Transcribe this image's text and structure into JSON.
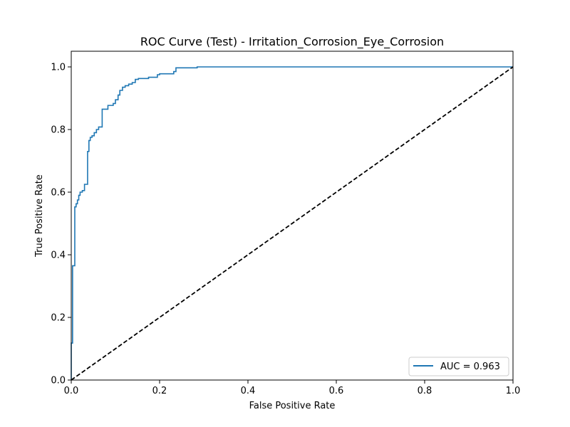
{
  "chart_data": {
    "type": "line",
    "title": "ROC Curve (Test) - Irritation_Corrosion_Eye_Corrosion",
    "xlabel": "False Positive Rate",
    "ylabel": "True Positive Rate",
    "xlim": [
      0.0,
      1.0
    ],
    "ylim": [
      0.0,
      1.05
    ],
    "xticks": [
      0.0,
      0.2,
      0.4,
      0.6,
      0.8,
      1.0
    ],
    "yticks": [
      0.0,
      0.2,
      0.4,
      0.6,
      0.8,
      1.0
    ],
    "xtick_labels": [
      "0.0",
      "0.2",
      "0.4",
      "0.6",
      "0.8",
      "1.0"
    ],
    "ytick_labels": [
      "0.0",
      "0.2",
      "0.4",
      "0.6",
      "0.8",
      "1.0"
    ],
    "grid": false,
    "legend_position": "lower-right",
    "series": [
      {
        "name": "AUC = 0.963",
        "color": "#1f77b4",
        "style": "solid",
        "x": [
          0.0,
          0.0,
          0.003,
          0.003,
          0.008,
          0.008,
          0.011,
          0.011,
          0.014,
          0.014,
          0.017,
          0.017,
          0.02,
          0.02,
          0.025,
          0.025,
          0.03,
          0.03,
          0.037,
          0.037,
          0.04,
          0.04,
          0.043,
          0.043,
          0.047,
          0.047,
          0.052,
          0.052,
          0.057,
          0.057,
          0.062,
          0.062,
          0.07,
          0.07,
          0.083,
          0.083,
          0.095,
          0.095,
          0.1,
          0.1,
          0.106,
          0.106,
          0.11,
          0.11,
          0.116,
          0.116,
          0.122,
          0.122,
          0.13,
          0.13,
          0.138,
          0.138,
          0.145,
          0.145,
          0.152,
          0.152,
          0.175,
          0.175,
          0.195,
          0.195,
          0.2,
          0.2,
          0.232,
          0.232,
          0.237,
          0.237,
          0.285,
          0.285,
          1.0
        ],
        "y": [
          0.0,
          0.118,
          0.118,
          0.365,
          0.365,
          0.553,
          0.553,
          0.563,
          0.563,
          0.575,
          0.575,
          0.59,
          0.59,
          0.6,
          0.6,
          0.605,
          0.605,
          0.625,
          0.625,
          0.73,
          0.73,
          0.765,
          0.765,
          0.775,
          0.775,
          0.78,
          0.78,
          0.79,
          0.79,
          0.8,
          0.8,
          0.808,
          0.808,
          0.865,
          0.865,
          0.877,
          0.877,
          0.883,
          0.883,
          0.895,
          0.895,
          0.91,
          0.91,
          0.925,
          0.925,
          0.935,
          0.935,
          0.94,
          0.94,
          0.945,
          0.945,
          0.95,
          0.95,
          0.96,
          0.96,
          0.963,
          0.963,
          0.967,
          0.967,
          0.975,
          0.975,
          0.978,
          0.978,
          0.985,
          0.985,
          0.997,
          0.997,
          1.0,
          1.0
        ]
      },
      {
        "name": "",
        "color": "#000000",
        "style": "dashed",
        "x": [
          0.0,
          1.0
        ],
        "y": [
          0.0,
          1.0
        ]
      }
    ]
  }
}
